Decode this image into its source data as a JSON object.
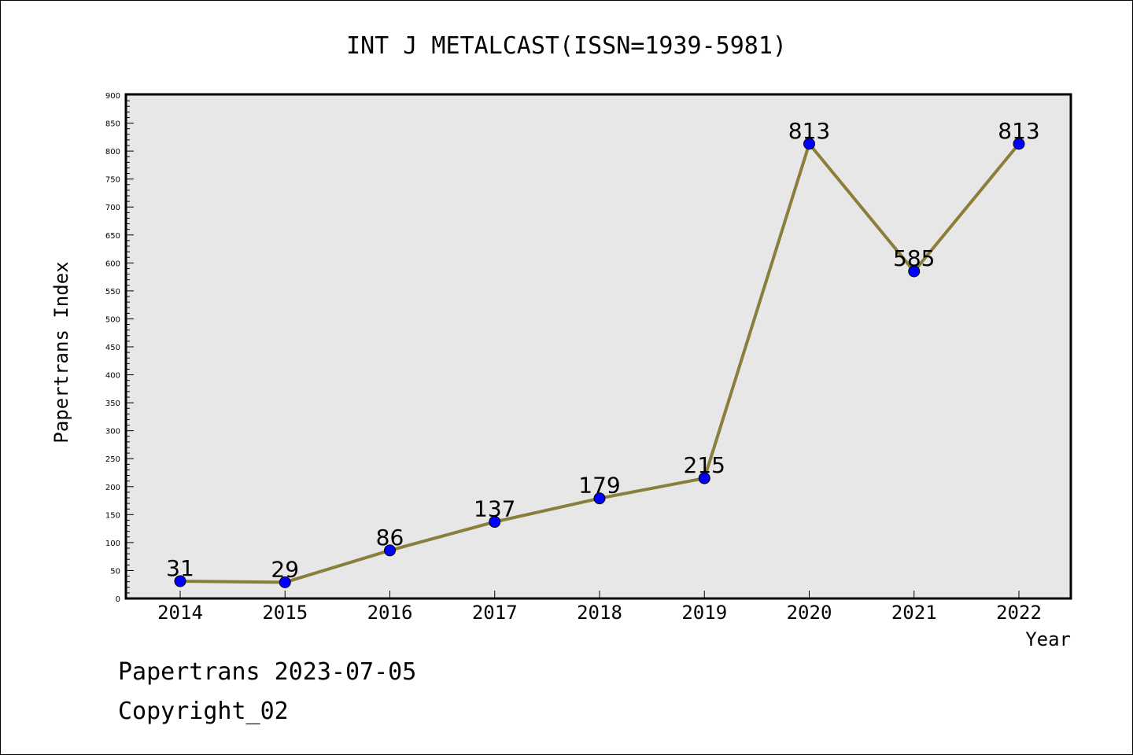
{
  "chart_data": {
    "type": "line",
    "title": "INT J METALCAST(ISSN=1939-5981)",
    "xlabel": "Year",
    "ylabel": "Papertrans Index",
    "categories": [
      "2014",
      "2015",
      "2016",
      "2017",
      "2018",
      "2019",
      "2020",
      "2021",
      "2022"
    ],
    "values": [
      31,
      29,
      86,
      137,
      179,
      215,
      813,
      585,
      813
    ],
    "data_labels": [
      "31",
      "29",
      "86",
      "137",
      "179",
      "215",
      "813",
      "585",
      "813"
    ],
    "ylim": [
      0,
      900
    ],
    "y_ticks": [
      "0",
      "50",
      "100",
      "150",
      "200",
      "250",
      "300",
      "350",
      "400",
      "450",
      "500",
      "550",
      "600",
      "650",
      "700",
      "750",
      "800",
      "850",
      "900"
    ],
    "grid": false,
    "line_color": "#8b7d3a",
    "marker_color": "#0000ff",
    "plot_background": "#e7e7e7"
  },
  "footer": {
    "date_text": "Papertrans 2023-07-05",
    "copyright_text": "Copyright_02"
  }
}
